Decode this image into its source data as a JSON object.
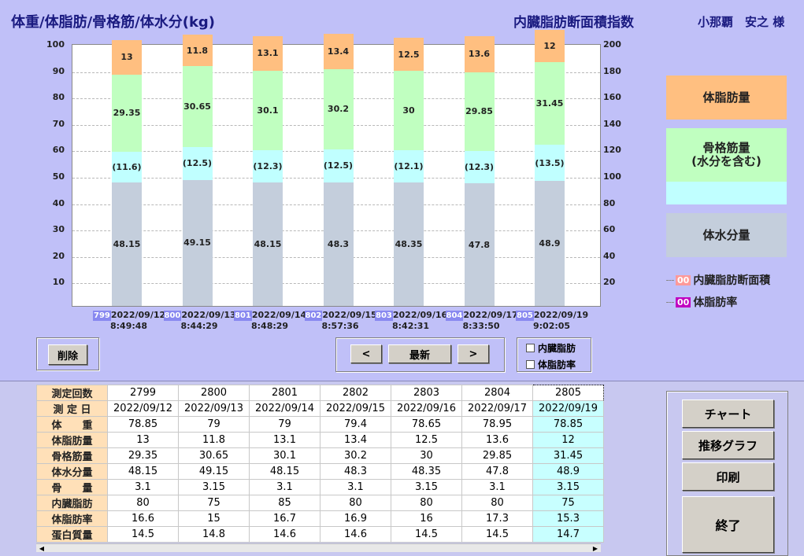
{
  "header": {
    "title": "体重/体脂肪/骨格筋/体水分(kg)",
    "visceral_title": "内臓脂肪断面積指数",
    "patient": "小那覇　安之 様"
  },
  "chart_data": {
    "type": "bar",
    "stacked": true,
    "y_left_ticks": [
      "100",
      "90",
      "80",
      "70",
      "60",
      "50",
      "40",
      "30",
      "20",
      "10"
    ],
    "y_right_ticks": [
      "200",
      "180",
      "160",
      "140",
      "120",
      "100",
      "80",
      "60",
      "40",
      "20"
    ],
    "ylim_left": [
      0,
      100
    ],
    "ylim_right": [
      0,
      200
    ],
    "grid": true,
    "categories": [
      {
        "no": "799",
        "date": "2022/09/12",
        "time": "8:49:48"
      },
      {
        "no": "800",
        "date": "2022/09/13",
        "time": "8:44:29"
      },
      {
        "no": "801",
        "date": "2022/09/14",
        "time": "8:48:29"
      },
      {
        "no": "802",
        "date": "2022/09/15",
        "time": "8:57:36"
      },
      {
        "no": "803",
        "date": "2022/09/16",
        "time": "8:42:31"
      },
      {
        "no": "804",
        "date": "2022/09/17",
        "time": "8:33:50"
      },
      {
        "no": "805",
        "date": "2022/09/19",
        "time": "9:02:05"
      }
    ],
    "series": [
      {
        "name": "体水分量",
        "key": "water",
        "values": [
          48.15,
          49.15,
          48.15,
          48.3,
          48.35,
          47.8,
          48.9
        ],
        "labels": [
          "48.15",
          "49.15",
          "48.15",
          "48.3",
          "48.35",
          "47.8",
          "48.9"
        ],
        "color": "#c4cedc"
      },
      {
        "name": "骨格筋量(水分を含む)",
        "key": "water2",
        "values": [
          11.6,
          12.5,
          12.3,
          12.5,
          12.1,
          12.3,
          13.5
        ],
        "labels": [
          "(11.6)",
          "(12.5)",
          "(12.3)",
          "(12.5)",
          "(12.1)",
          "(12.3)",
          "(13.5)"
        ],
        "color": "#c0ffff"
      },
      {
        "name": "骨格筋量",
        "key": "muscle",
        "values": [
          29.35,
          30.65,
          30.1,
          30.2,
          30,
          29.85,
          31.45
        ],
        "labels": [
          "29.35",
          "30.65",
          "30.1",
          "30.2",
          "30",
          "29.85",
          "31.45"
        ],
        "color": "#c0ffc0"
      },
      {
        "name": "体脂肪量",
        "key": "fat",
        "values": [
          13,
          11.8,
          13.1,
          13.4,
          12.5,
          13.6,
          12
        ],
        "labels": [
          "13",
          "11.8",
          "13.1",
          "13.4",
          "12.5",
          "13.6",
          "12"
        ],
        "color": "#ffbf80"
      }
    ]
  },
  "legend": {
    "fat": "体脂肪量",
    "muscle": "骨格筋量\n(水分を含む)",
    "water": "体水分量",
    "visceral_marker": "00",
    "visceral_label": "内臓脂肪断面積",
    "fatpct_marker": "00",
    "fatpct_label": "体脂肪率",
    "visceral_color": "#ff8888",
    "fatpct_color": "#c000c0"
  },
  "controls": {
    "delete": "削除",
    "prev": "<",
    "latest": "最新",
    "next": ">",
    "chk_visceral": "内臓脂肪",
    "chk_fatpct": "体脂肪率"
  },
  "table": {
    "rows": [
      {
        "label": "測定回数",
        "values": [
          "2799",
          "2800",
          "2801",
          "2802",
          "2803",
          "2804",
          "2805"
        ]
      },
      {
        "label": "測 定 日",
        "values": [
          "2022/09/12",
          "2022/09/13",
          "2022/09/14",
          "2022/09/15",
          "2022/09/16",
          "2022/09/17",
          "2022/09/19"
        ]
      },
      {
        "label": "体　　重",
        "values": [
          "78.85",
          "79",
          "79",
          "79.4",
          "78.65",
          "78.95",
          "78.85"
        ]
      },
      {
        "label": "体脂肪量",
        "values": [
          "13",
          "11.8",
          "13.1",
          "13.4",
          "12.5",
          "13.6",
          "12"
        ]
      },
      {
        "label": "骨格筋量",
        "values": [
          "29.35",
          "30.65",
          "30.1",
          "30.2",
          "30",
          "29.85",
          "31.45"
        ]
      },
      {
        "label": "体水分量",
        "values": [
          "48.15",
          "49.15",
          "48.15",
          "48.3",
          "48.35",
          "47.8",
          "48.9"
        ]
      },
      {
        "label": "骨　　量",
        "values": [
          "3.1",
          "3.15",
          "3.1",
          "3.1",
          "3.15",
          "3.1",
          "3.15"
        ]
      },
      {
        "label": "内臓脂肪",
        "values": [
          "80",
          "75",
          "85",
          "80",
          "80",
          "80",
          "75"
        ]
      },
      {
        "label": "体脂肪率",
        "values": [
          "16.6",
          "15",
          "16.7",
          "16.9",
          "16",
          "17.3",
          "15.3"
        ]
      },
      {
        "label": "蛋白質量",
        "values": [
          "14.5",
          "14.8",
          "14.6",
          "14.6",
          "14.5",
          "14.5",
          "14.7"
        ]
      }
    ]
  },
  "side_buttons": {
    "chart": "チャート",
    "trend": "推移グラフ",
    "print": "印刷",
    "exit": "終了"
  }
}
